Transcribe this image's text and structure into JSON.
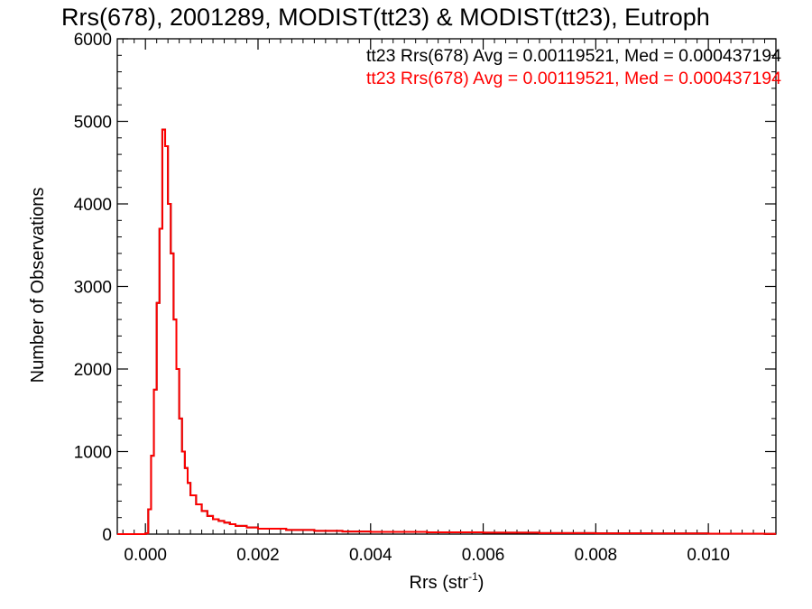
{
  "chart_data": {
    "type": "line",
    "title": "Rrs(678), 2001289, MODIST(tt23) & MODIST(tt23), Eutroph",
    "xlabel": "Rrs (str",
    "xlabel_superscript": "-1",
    "xlabel_suffix": ")",
    "ylabel": "Number of Observations",
    "xlim": [
      -0.0005,
      0.0112
    ],
    "ylim": [
      0,
      6000
    ],
    "x_ticks": [
      0.0,
      0.002,
      0.004,
      0.006,
      0.008,
      0.01
    ],
    "x_tick_labels": [
      "0.000",
      "0.002",
      "0.004",
      "0.006",
      "0.008",
      "0.010"
    ],
    "y_ticks": [
      0,
      1000,
      2000,
      3000,
      4000,
      5000,
      6000
    ],
    "y_tick_labels": [
      "0",
      "1000",
      "2000",
      "3000",
      "4000",
      "5000",
      "6000"
    ],
    "grid": false,
    "annotations": [
      {
        "text": "tt23 Rrs(678) Avg = 0.00119521, Med = 0.000437194",
        "color": "#000000"
      },
      {
        "text": "tt23 Rrs(678) Avg = 0.00119521, Med = 0.000437194",
        "color": "#ff0000"
      }
    ],
    "series": [
      {
        "color": "#000000",
        "x": [
          -0.0005,
          0.0,
          5e-05,
          0.0001,
          0.00015,
          0.0002,
          0.00025,
          0.0003,
          0.00035,
          0.0004,
          0.00045,
          0.0005,
          0.00055,
          0.0006,
          0.00065,
          0.0007,
          0.00075,
          0.0008,
          0.0009,
          0.001,
          0.0011,
          0.0012,
          0.0013,
          0.0014,
          0.0015,
          0.0016,
          0.0018,
          0.002,
          0.0025,
          0.003,
          0.0035,
          0.004,
          0.005,
          0.006,
          0.007,
          0.008,
          0.009,
          0.01,
          0.011
        ],
        "y": [
          0,
          10,
          300,
          950,
          1750,
          2800,
          3700,
          4900,
          4700,
          4000,
          3400,
          2600,
          2000,
          1400,
          1000,
          800,
          620,
          470,
          360,
          280,
          220,
          180,
          160,
          140,
          120,
          100,
          80,
          65,
          50,
          40,
          32,
          28,
          22,
          18,
          12,
          10,
          8,
          5,
          3
        ]
      },
      {
        "color": "#ff0000",
        "x": [
          -0.0005,
          0.0,
          5e-05,
          0.0001,
          0.00015,
          0.0002,
          0.00025,
          0.0003,
          0.00035,
          0.0004,
          0.00045,
          0.0005,
          0.00055,
          0.0006,
          0.00065,
          0.0007,
          0.00075,
          0.0008,
          0.0009,
          0.001,
          0.0011,
          0.0012,
          0.0013,
          0.0014,
          0.0015,
          0.0016,
          0.0018,
          0.002,
          0.0025,
          0.003,
          0.0035,
          0.004,
          0.005,
          0.006,
          0.007,
          0.008,
          0.009,
          0.01,
          0.011
        ],
        "y": [
          0,
          10,
          300,
          950,
          1750,
          2800,
          3700,
          4900,
          4700,
          4000,
          3400,
          2600,
          2000,
          1400,
          1000,
          800,
          620,
          470,
          360,
          280,
          220,
          180,
          160,
          140,
          120,
          100,
          80,
          65,
          50,
          40,
          32,
          28,
          22,
          18,
          12,
          10,
          8,
          5,
          3
        ]
      }
    ]
  }
}
